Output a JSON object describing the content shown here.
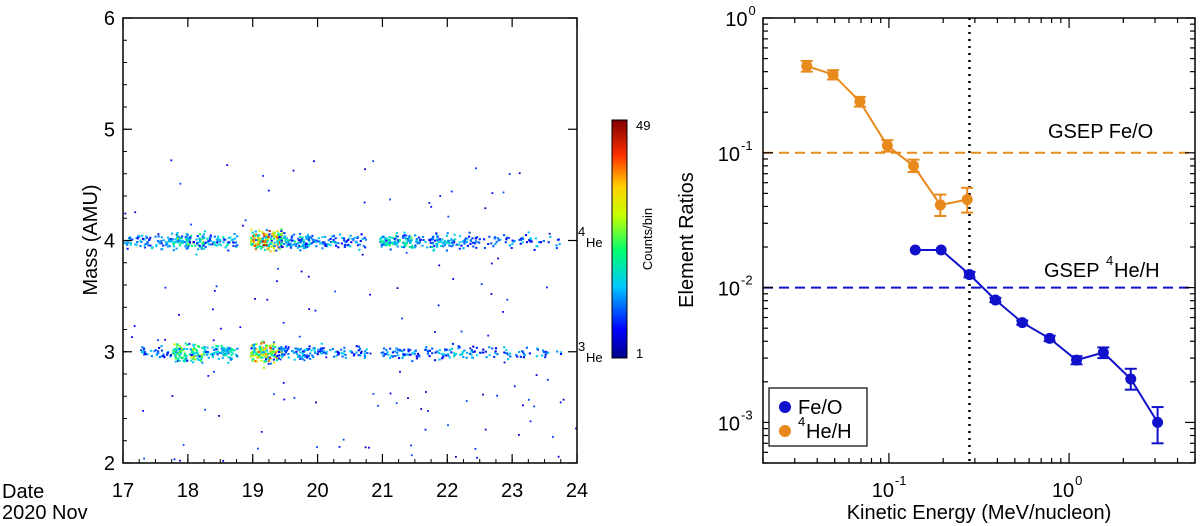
{
  "chart_data": [
    {
      "type": "heatmap",
      "xlabel_line1": "Date",
      "xlabel_line2": "2020 Nov",
      "ylabel": "Mass (AMU)",
      "xlim": [
        17,
        24
      ],
      "ylim": [
        2,
        6
      ],
      "x_ticks": [
        "17",
        "18",
        "19",
        "20",
        "21",
        "22",
        "23",
        "24"
      ],
      "y_ticks": [
        "2",
        "3",
        "4",
        "5",
        "6"
      ],
      "species_labels": [
        {
          "sup": "4",
          "name": "He",
          "mass": 4
        },
        {
          "sup": "3",
          "name": "He",
          "mass": 3
        }
      ],
      "colorbar": {
        "label": "Counts/bin",
        "min_label": "1",
        "max_label": "49",
        "min": 1,
        "max": 49
      },
      "bands": [
        {
          "mass": 4.0,
          "intensity_by_day": [
            {
              "day": 17.0,
              "level": 0.25
            },
            {
              "day": 17.5,
              "level": 0.3
            },
            {
              "day": 18.0,
              "level": 0.6
            },
            {
              "day": 18.5,
              "level": 0.35
            },
            {
              "day": 19.2,
              "level": 1.0
            },
            {
              "day": 19.6,
              "level": 0.45
            },
            {
              "day": 20.0,
              "level": 0.3
            },
            {
              "day": 20.5,
              "level": 0.25
            },
            {
              "day": 21.2,
              "level": 0.55
            },
            {
              "day": 21.6,
              "level": 0.25
            },
            {
              "day": 22.0,
              "level": 0.35
            },
            {
              "day": 22.5,
              "level": 0.2
            },
            {
              "day": 23.0,
              "level": 0.15
            },
            {
              "day": 23.5,
              "level": 0.12
            }
          ]
        },
        {
          "mass": 3.0,
          "intensity_by_day": [
            {
              "day": 17.5,
              "level": 0.2
            },
            {
              "day": 18.0,
              "level": 0.75
            },
            {
              "day": 18.5,
              "level": 0.45
            },
            {
              "day": 19.2,
              "level": 0.9
            },
            {
              "day": 19.6,
              "level": 0.35
            },
            {
              "day": 20.0,
              "level": 0.25
            },
            {
              "day": 20.5,
              "level": 0.2
            },
            {
              "day": 21.2,
              "level": 0.25
            },
            {
              "day": 21.6,
              "level": 0.15
            },
            {
              "day": 22.0,
              "level": 0.2
            },
            {
              "day": 22.5,
              "level": 0.15
            },
            {
              "day": 23.0,
              "level": 0.12
            },
            {
              "day": 23.5,
              "level": 0.1
            }
          ]
        }
      ]
    },
    {
      "type": "line",
      "xscale": "log",
      "yscale": "log",
      "xlabel": "Kinetic Energy (MeV/nucleon)",
      "ylabel": "Element Ratios",
      "xlim": [
        0.02,
        5
      ],
      "ylim": [
        0.0005,
        1
      ],
      "x_ticks": [
        {
          "value": 0.1,
          "base": "10",
          "exp": "-1"
        },
        {
          "value": 1,
          "base": "10",
          "exp": "0"
        }
      ],
      "y_ticks": [
        {
          "value": 0.001,
          "base": "10",
          "exp": "-3"
        },
        {
          "value": 0.01,
          "base": "10",
          "exp": "-2"
        },
        {
          "value": 0.1,
          "base": "10",
          "exp": "-1"
        },
        {
          "value": 1,
          "base": "10",
          "exp": "0"
        }
      ],
      "vertical_line": {
        "x": 0.28,
        "style": "dotted",
        "color": "#000000"
      },
      "reference_lines": [
        {
          "label": "GSEP Fe/O",
          "label_sup": "",
          "value": 0.1,
          "color": "#e8891c"
        },
        {
          "label_pre": "GSEP ",
          "label_sup": "4",
          "label_post": "He/H",
          "value": 0.01,
          "color": "#1111cc"
        }
      ],
      "series": [
        {
          "name": "Fe/O",
          "color": "#1111cc",
          "x": [
            0.14,
            0.195,
            0.28,
            0.39,
            0.55,
            0.78,
            1.1,
            1.55,
            2.2,
            3.1
          ],
          "y": [
            0.019,
            0.019,
            0.0125,
            0.0081,
            0.0055,
            0.0042,
            0.0029,
            0.0033,
            0.0021,
            0.001
          ],
          "err_low": [
            0.019,
            0.019,
            0.0119,
            0.0078,
            0.0053,
            0.004,
            0.0027,
            0.003,
            0.00175,
            0.0007
          ],
          "err_high": [
            0.019,
            0.019,
            0.0131,
            0.0084,
            0.0057,
            0.0044,
            0.0031,
            0.0036,
            0.0025,
            0.0013
          ]
        },
        {
          "name_sup": "4",
          "name": "He/H",
          "color": "#e8891c",
          "x": [
            0.035,
            0.049,
            0.069,
            0.098,
            0.137,
            0.193,
            0.272
          ],
          "y": [
            0.44,
            0.38,
            0.24,
            0.113,
            0.08,
            0.041,
            0.045
          ],
          "err_low": [
            0.4,
            0.35,
            0.22,
            0.102,
            0.072,
            0.034,
            0.036
          ],
          "err_high": [
            0.48,
            0.41,
            0.26,
            0.124,
            0.089,
            0.049,
            0.055
          ]
        }
      ],
      "legend": {
        "placement": "bottom-left",
        "entries": [
          "Fe/O",
          "4He/H"
        ]
      }
    }
  ]
}
